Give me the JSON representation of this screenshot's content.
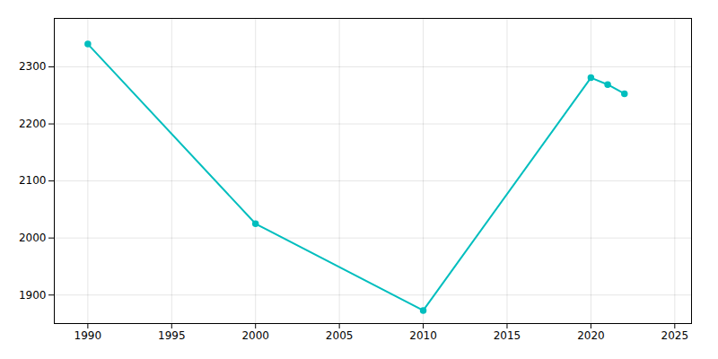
{
  "chart_data": {
    "type": "line",
    "x": [
      1990,
      2000,
      2010,
      2020,
      2021,
      2022
    ],
    "values": [
      2340,
      2025,
      1873,
      2281,
      2269,
      2253
    ],
    "color": "#00BEBE",
    "marker": "circle",
    "xlim": [
      1988,
      2026
    ],
    "ylim": [
      1850,
      2385
    ],
    "xticks": [
      1990,
      1995,
      2000,
      2005,
      2010,
      2015,
      2020,
      2025
    ],
    "yticks": [
      1900,
      2000,
      2100,
      2200,
      2300
    ],
    "grid": true
  }
}
